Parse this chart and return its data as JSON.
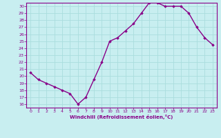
{
  "x": [
    0,
    1,
    2,
    3,
    4,
    5,
    6,
    7,
    8,
    9,
    10,
    11,
    12,
    13,
    14,
    15,
    16,
    17,
    18,
    19,
    20,
    21,
    22,
    23
  ],
  "y": [
    20.5,
    19.5,
    19.0,
    18.5,
    18.0,
    17.5,
    16.0,
    17.0,
    19.5,
    22.0,
    25.0,
    25.5,
    26.5,
    27.5,
    29.0,
    30.5,
    30.5,
    30.0,
    30.0,
    30.0,
    29.0,
    27.0,
    25.5,
    24.5
  ],
  "xlabel": "Windchill (Refroidissement éolien,°C)",
  "ylim": [
    15.5,
    30.5
  ],
  "xlim": [
    -0.5,
    23.5
  ],
  "yticks": [
    16,
    17,
    18,
    19,
    20,
    21,
    22,
    23,
    24,
    25,
    26,
    27,
    28,
    29,
    30
  ],
  "xticks": [
    0,
    1,
    2,
    3,
    4,
    5,
    6,
    7,
    8,
    9,
    10,
    11,
    12,
    13,
    14,
    15,
    16,
    17,
    18,
    19,
    20,
    21,
    22,
    23
  ],
  "line_color": "#880088",
  "marker": "D",
  "bg_color": "#c8eef0",
  "grid_color": "#aadddd",
  "border_color": "#880088",
  "tick_label_color": "#880088",
  "axis_label_color": "#880088",
  "marker_size": 1.8,
  "line_width": 1.0
}
